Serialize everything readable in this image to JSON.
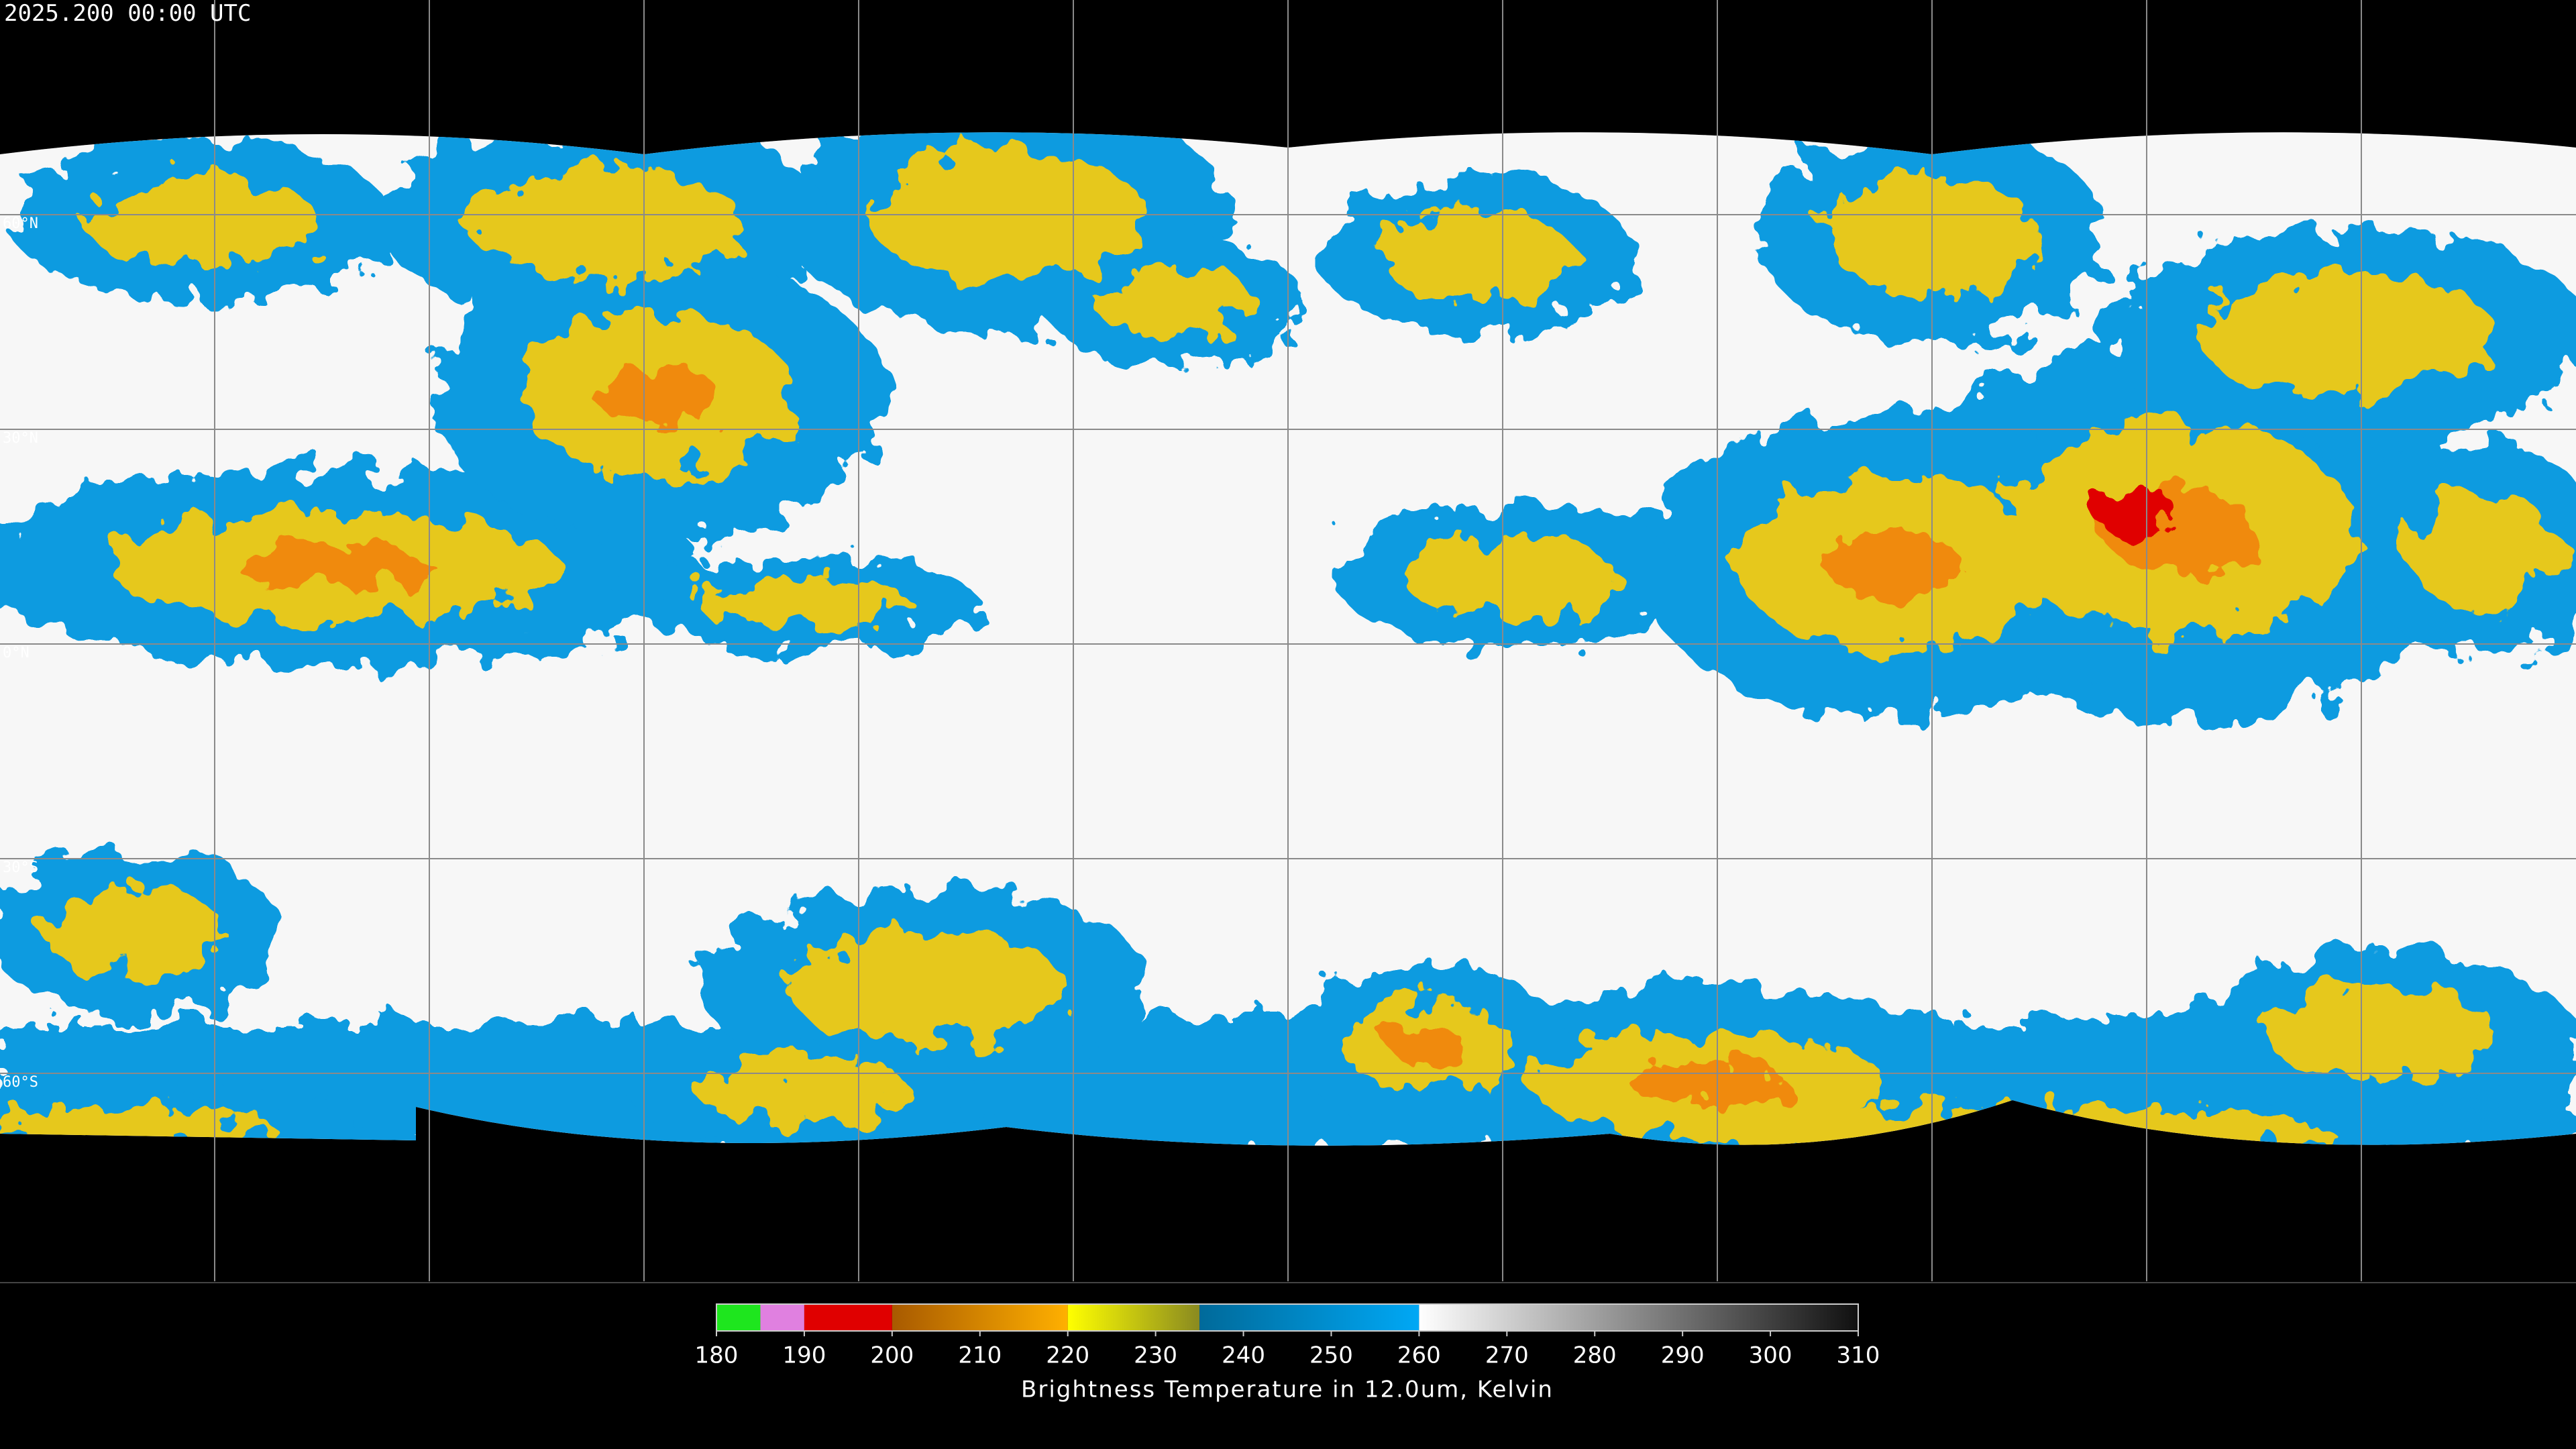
{
  "timestamp": "2025.200 00:00 UTC",
  "lat_labels": [
    "60°N",
    "30°N",
    "0°N",
    "30°S",
    "60°S"
  ],
  "colorbar": {
    "title": "Brightness Temperature in 12.0um, Kelvin",
    "range": [
      180,
      310
    ],
    "ticks": [
      180,
      190,
      200,
      210,
      220,
      230,
      240,
      250,
      260,
      270,
      280,
      290,
      300,
      310
    ],
    "segments": [
      {
        "from": 180,
        "to": 185,
        "colors": [
          "#1ee61e",
          "#1ee61e"
        ]
      },
      {
        "from": 185,
        "to": 190,
        "colors": [
          "#e080e0",
          "#e080e0"
        ]
      },
      {
        "from": 190,
        "to": 200,
        "colors": [
          "#e00000",
          "#e00000"
        ]
      },
      {
        "from": 200,
        "to": 220,
        "colors": [
          "#a85a00",
          "#ffb000"
        ]
      },
      {
        "from": 220,
        "to": 235,
        "colors": [
          "#ffff00",
          "#8a8a20"
        ]
      },
      {
        "from": 235,
        "to": 260,
        "colors": [
          "#006a9a",
          "#00a8f5"
        ]
      },
      {
        "from": 260,
        "to": 310,
        "colors": [
          "#ffffff",
          "#101010"
        ]
      }
    ]
  }
}
